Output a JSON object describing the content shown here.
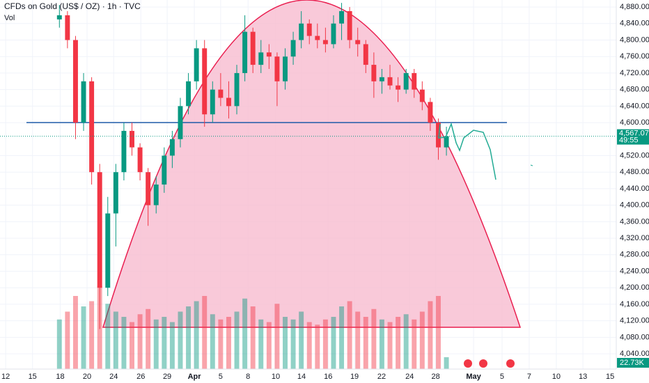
{
  "chart_data": {
    "type": "candlestick",
    "title": "CFDs on Gold (US$ / OZ) · 1h · TVC",
    "volume_title": "Vol",
    "ylim": [
      4003,
      4897
    ],
    "yticks": [
      {
        "value": 4880,
        "label": "4,880.000"
      },
      {
        "value": 4840,
        "label": "4,840.000"
      },
      {
        "value": 4800,
        "label": "4,800.000"
      },
      {
        "value": 4760,
        "label": "4,760.000"
      },
      {
        "value": 4720,
        "label": "4,720.000"
      },
      {
        "value": 4680,
        "label": "4,680.000"
      },
      {
        "value": 4640,
        "label": "4,640.000"
      },
      {
        "value": 4600,
        "label": "4,600.000"
      },
      {
        "value": 4520,
        "label": "4,520.000"
      },
      {
        "value": 4480,
        "label": "4,480.000"
      },
      {
        "value": 4440,
        "label": "4,440.000"
      },
      {
        "value": 4400,
        "label": "4,400.000"
      },
      {
        "value": 4360,
        "label": "4,360.000"
      },
      {
        "value": 4320,
        "label": "4,320.000"
      },
      {
        "value": 4280,
        "label": "4,280.000"
      },
      {
        "value": 4240,
        "label": "4,240.000"
      },
      {
        "value": 4200,
        "label": "4,200.000"
      },
      {
        "value": 4160,
        "label": "4,160.000"
      },
      {
        "value": 4120,
        "label": "4,120.000"
      },
      {
        "value": 4080,
        "label": "4,080.000"
      },
      {
        "value": 4040,
        "label": "4,040.000"
      }
    ],
    "xlim": [
      -0.21,
      22.72
    ],
    "xticks": [
      {
        "value": 0,
        "label": "12"
      },
      {
        "value": 1,
        "label": "15"
      },
      {
        "value": 2.03,
        "label": "18"
      },
      {
        "value": 3.03,
        "label": "20"
      },
      {
        "value": 4.02,
        "label": "24"
      },
      {
        "value": 5.03,
        "label": "26"
      },
      {
        "value": 6.01,
        "label": "29"
      },
      {
        "value": 7.02,
        "label": "Apr"
      },
      {
        "value": 8,
        "label": "5"
      },
      {
        "value": 9.02,
        "label": "8"
      },
      {
        "value": 10.05,
        "label": "10"
      },
      {
        "value": 11.01,
        "label": "14"
      },
      {
        "value": 12,
        "label": "16"
      },
      {
        "value": 12.98,
        "label": "19"
      },
      {
        "value": 13.99,
        "label": "22"
      },
      {
        "value": 15.03,
        "label": "24"
      },
      {
        "value": 16,
        "label": "28"
      },
      {
        "value": 17.41,
        "label": "May"
      },
      {
        "value": 18.47,
        "label": "5"
      },
      {
        "value": 19.48,
        "label": "7"
      },
      {
        "value": 20.49,
        "label": "10"
      },
      {
        "value": 21.48,
        "label": "13"
      },
      {
        "value": 22.49,
        "label": "15"
      }
    ],
    "up_color": "#089981",
    "down_color": "#f23645",
    "x": [
      2.0,
      2.3,
      2.6,
      2.9,
      3.2,
      3.5,
      3.8,
      4.1,
      4.4,
      4.7,
      5.0,
      5.3,
      5.6,
      5.9,
      6.2,
      6.5,
      6.8,
      7.1,
      7.4,
      7.7,
      8.0,
      8.3,
      8.6,
      8.9,
      9.2,
      9.5,
      9.8,
      10.1,
      10.4,
      10.7,
      11.0,
      11.3,
      11.6,
      11.9,
      12.2,
      12.5,
      12.8,
      13.1,
      13.4,
      13.7,
      14.0,
      14.3,
      14.6,
      14.9,
      15.2,
      15.5,
      15.8,
      16.1,
      16.4
    ],
    "open": [
      4850,
      4860,
      4800,
      4600,
      4700,
      4480,
      4200,
      4380,
      4480,
      4580,
      4540,
      4480,
      4400,
      4450,
      4520,
      4560,
      4640,
      4700,
      4780,
      4620,
      4680,
      4660,
      4640,
      4720,
      4820,
      4740,
      4770,
      4760,
      4700,
      4760,
      4800,
      4840,
      4810,
      4800,
      4790,
      4840,
      4870,
      4800,
      4790,
      4740,
      4700,
      4710,
      4690,
      4680,
      4720,
      4680,
      4650,
      4600,
      4540
    ],
    "high": [
      4885,
      4870,
      4810,
      4720,
      4710,
      4500,
      4420,
      4500,
      4600,
      4600,
      4550,
      4490,
      4470,
      4540,
      4580,
      4660,
      4720,
      4800,
      4800,
      4700,
      4720,
      4700,
      4740,
      4860,
      4830,
      4800,
      4790,
      4770,
      4780,
      4820,
      4870,
      4850,
      4840,
      4830,
      4860,
      4890,
      4880,
      4830,
      4800,
      4770,
      4730,
      4740,
      4710,
      4730,
      4730,
      4700,
      4660,
      4610,
      4590
    ],
    "low": [
      4830,
      4780,
      4560,
      4580,
      4450,
      4100,
      4180,
      4300,
      4460,
      4520,
      4460,
      4350,
      4380,
      4430,
      4490,
      4540,
      4620,
      4680,
      4590,
      4600,
      4640,
      4610,
      4620,
      4700,
      4720,
      4720,
      4730,
      4640,
      4680,
      4740,
      4780,
      4790,
      4780,
      4770,
      4780,
      4800,
      4780,
      4760,
      4720,
      4660,
      4670,
      4680,
      4650,
      4670,
      4660,
      4630,
      4580,
      4510,
      4520
    ],
    "close": [
      4860,
      4800,
      4600,
      4700,
      4480,
      4200,
      4380,
      4480,
      4580,
      4540,
      4480,
      4400,
      4450,
      4520,
      4560,
      4640,
      4700,
      4780,
      4620,
      4680,
      4660,
      4640,
      4720,
      4820,
      4740,
      4770,
      4760,
      4700,
      4760,
      4800,
      4840,
      4810,
      4800,
      4790,
      4840,
      4870,
      4800,
      4790,
      4740,
      4700,
      4710,
      4690,
      4680,
      4720,
      4680,
      4650,
      4600,
      4540,
      4567.075
    ],
    "volume": [
      95,
      110,
      140,
      120,
      130,
      160,
      125,
      110,
      100,
      90,
      105,
      115,
      95,
      100,
      90,
      110,
      120,
      130,
      140,
      105,
      95,
      100,
      110,
      135,
      120,
      95,
      90,
      125,
      100,
      95,
      110,
      90,
      85,
      95,
      100,
      120,
      130,
      110,
      100,
      115,
      95,
      90,
      100,
      105,
      95,
      110,
      130,
      140,
      22.73
    ],
    "volume_lim": [
      0,
      200
    ],
    "last_value_label": "22.73K",
    "last_price": {
      "value": 4567.075,
      "label": "4,567.075"
    },
    "countdown": "49:55"
  }
}
